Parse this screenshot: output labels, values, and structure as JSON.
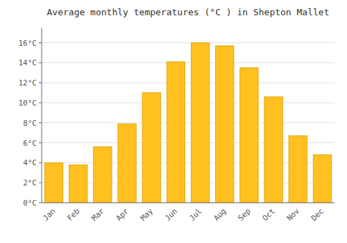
{
  "chart_data": {
    "type": "bar",
    "title": "Average monthly temperatures (°C ) in Shepton Mallet",
    "categories": [
      "Jan",
      "Feb",
      "Mar",
      "Apr",
      "May",
      "Jun",
      "Jul",
      "Aug",
      "Sep",
      "Oct",
      "Nov",
      "Dec"
    ],
    "values": [
      4.0,
      3.8,
      5.6,
      7.9,
      11.0,
      14.1,
      16.0,
      15.7,
      13.5,
      10.6,
      6.7,
      4.8
    ],
    "color": "#FFC020",
    "ylim": [
      0,
      17.5
    ],
    "yticks": [
      {
        "value": 0,
        "label": "0°C"
      },
      {
        "value": 2,
        "label": "2°C"
      },
      {
        "value": 4,
        "label": "4°C"
      },
      {
        "value": 6,
        "label": "6°C"
      },
      {
        "value": 8,
        "label": "8°C"
      },
      {
        "value": 10,
        "label": "10°C"
      },
      {
        "value": 12,
        "label": "12°C"
      },
      {
        "value": 14,
        "label": "14°C"
      },
      {
        "value": 16,
        "label": "16°C"
      }
    ],
    "grid": true
  }
}
